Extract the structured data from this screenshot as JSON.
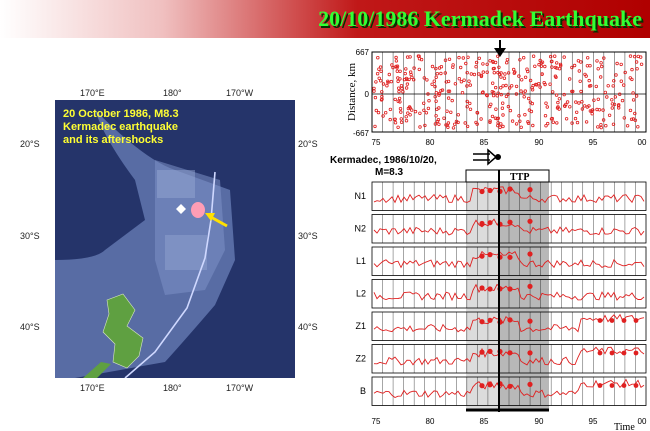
{
  "title": "20/10/1986 Kermadek Earthquake",
  "map": {
    "caption_lines": [
      "20 October 1986, M8.3",
      "Kermadec earthquake",
      "and its aftershocks"
    ],
    "top_lon_labels": [
      "170°E",
      "180°",
      "170°W"
    ],
    "bottom_lon_labels": [
      "170°E",
      "180°",
      "170°W"
    ],
    "lat_labels": [
      "20°S",
      "30°S",
      "40°S"
    ]
  },
  "event_label": {
    "line1": "Kermadec, 1986/10/20,",
    "line2": "M=8.3"
  },
  "ttp_label": "TTP",
  "top_chart": {
    "ylabel": "Distance, km",
    "y_ticks": [
      "667",
      "0",
      "-667"
    ],
    "x_ticks": [
      "75",
      "80",
      "85",
      "90",
      "95",
      "00"
    ]
  },
  "stack_chart": {
    "series_names": [
      "N1",
      "N2",
      "L1",
      "L2",
      "Z1",
      "Z2",
      "B"
    ],
    "x_ticks": [
      "75",
      "80",
      "85",
      "90",
      "95",
      "00"
    ],
    "xlabel": "Time"
  },
  "colors": {
    "accent": "#e02020",
    "title": "#33ff33",
    "caption": "#ffff33"
  }
}
